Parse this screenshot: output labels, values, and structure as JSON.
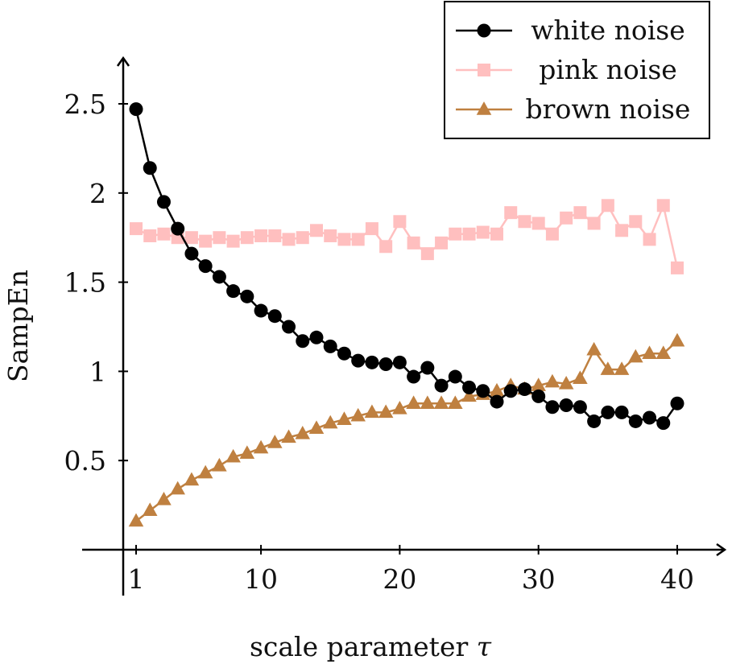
{
  "chart_data": {
    "type": "line",
    "title": "",
    "xlabel": "scale parameter",
    "xlabel_symbol": "τ",
    "ylabel": "SampEn",
    "xlim": [
      0.2,
      42.5
    ],
    "ylim": [
      0,
      2.8
    ],
    "xticks": [
      1,
      10,
      20,
      30,
      40
    ],
    "xtick_labels": [
      "1",
      "10",
      "20",
      "30",
      "40"
    ],
    "yticks": [
      0.5,
      1,
      1.5,
      2,
      2.5
    ],
    "ytick_labels": [
      "0.5",
      "1",
      "1.5",
      "2",
      "2.5"
    ],
    "grid": false,
    "legend_position": "top-right",
    "x": [
      1,
      2,
      3,
      4,
      5,
      6,
      7,
      8,
      9,
      10,
      11,
      12,
      13,
      14,
      15,
      16,
      17,
      18,
      19,
      20,
      21,
      22,
      23,
      24,
      25,
      26,
      27,
      28,
      29,
      30,
      31,
      32,
      33,
      34,
      35,
      36,
      37,
      38,
      39,
      40
    ],
    "series": [
      {
        "name": "white noise",
        "color": "#000000",
        "marker": "circle",
        "values": [
          2.47,
          2.14,
          1.95,
          1.8,
          1.66,
          1.59,
          1.53,
          1.45,
          1.42,
          1.34,
          1.31,
          1.25,
          1.17,
          1.19,
          1.14,
          1.1,
          1.06,
          1.05,
          1.04,
          1.05,
          0.97,
          1.02,
          0.92,
          0.97,
          0.91,
          0.89,
          0.83,
          0.89,
          0.9,
          0.86,
          0.8,
          0.81,
          0.8,
          0.72,
          0.77,
          0.77,
          0.72,
          0.74,
          0.71,
          0.82
        ]
      },
      {
        "name": "pink noise",
        "color": "#ffbfbf",
        "marker": "square",
        "values": [
          1.8,
          1.76,
          1.77,
          1.75,
          1.75,
          1.73,
          1.75,
          1.73,
          1.75,
          1.76,
          1.76,
          1.74,
          1.75,
          1.79,
          1.76,
          1.74,
          1.74,
          1.8,
          1.7,
          1.84,
          1.72,
          1.66,
          1.72,
          1.77,
          1.77,
          1.78,
          1.77,
          1.89,
          1.84,
          1.83,
          1.77,
          1.86,
          1.89,
          1.83,
          1.93,
          1.79,
          1.84,
          1.74,
          1.93,
          1.58
        ]
      },
      {
        "name": "brown noise",
        "color": "#bf8040",
        "marker": "triangle",
        "values": [
          0.16,
          0.22,
          0.28,
          0.34,
          0.39,
          0.43,
          0.47,
          0.52,
          0.54,
          0.57,
          0.6,
          0.63,
          0.65,
          0.68,
          0.71,
          0.73,
          0.75,
          0.77,
          0.77,
          0.79,
          0.82,
          0.82,
          0.82,
          0.82,
          0.86,
          0.87,
          0.89,
          0.92,
          0.9,
          0.92,
          0.94,
          0.93,
          0.96,
          1.12,
          1.01,
          1.01,
          1.08,
          1.1,
          1.1,
          1.17
        ]
      }
    ]
  }
}
